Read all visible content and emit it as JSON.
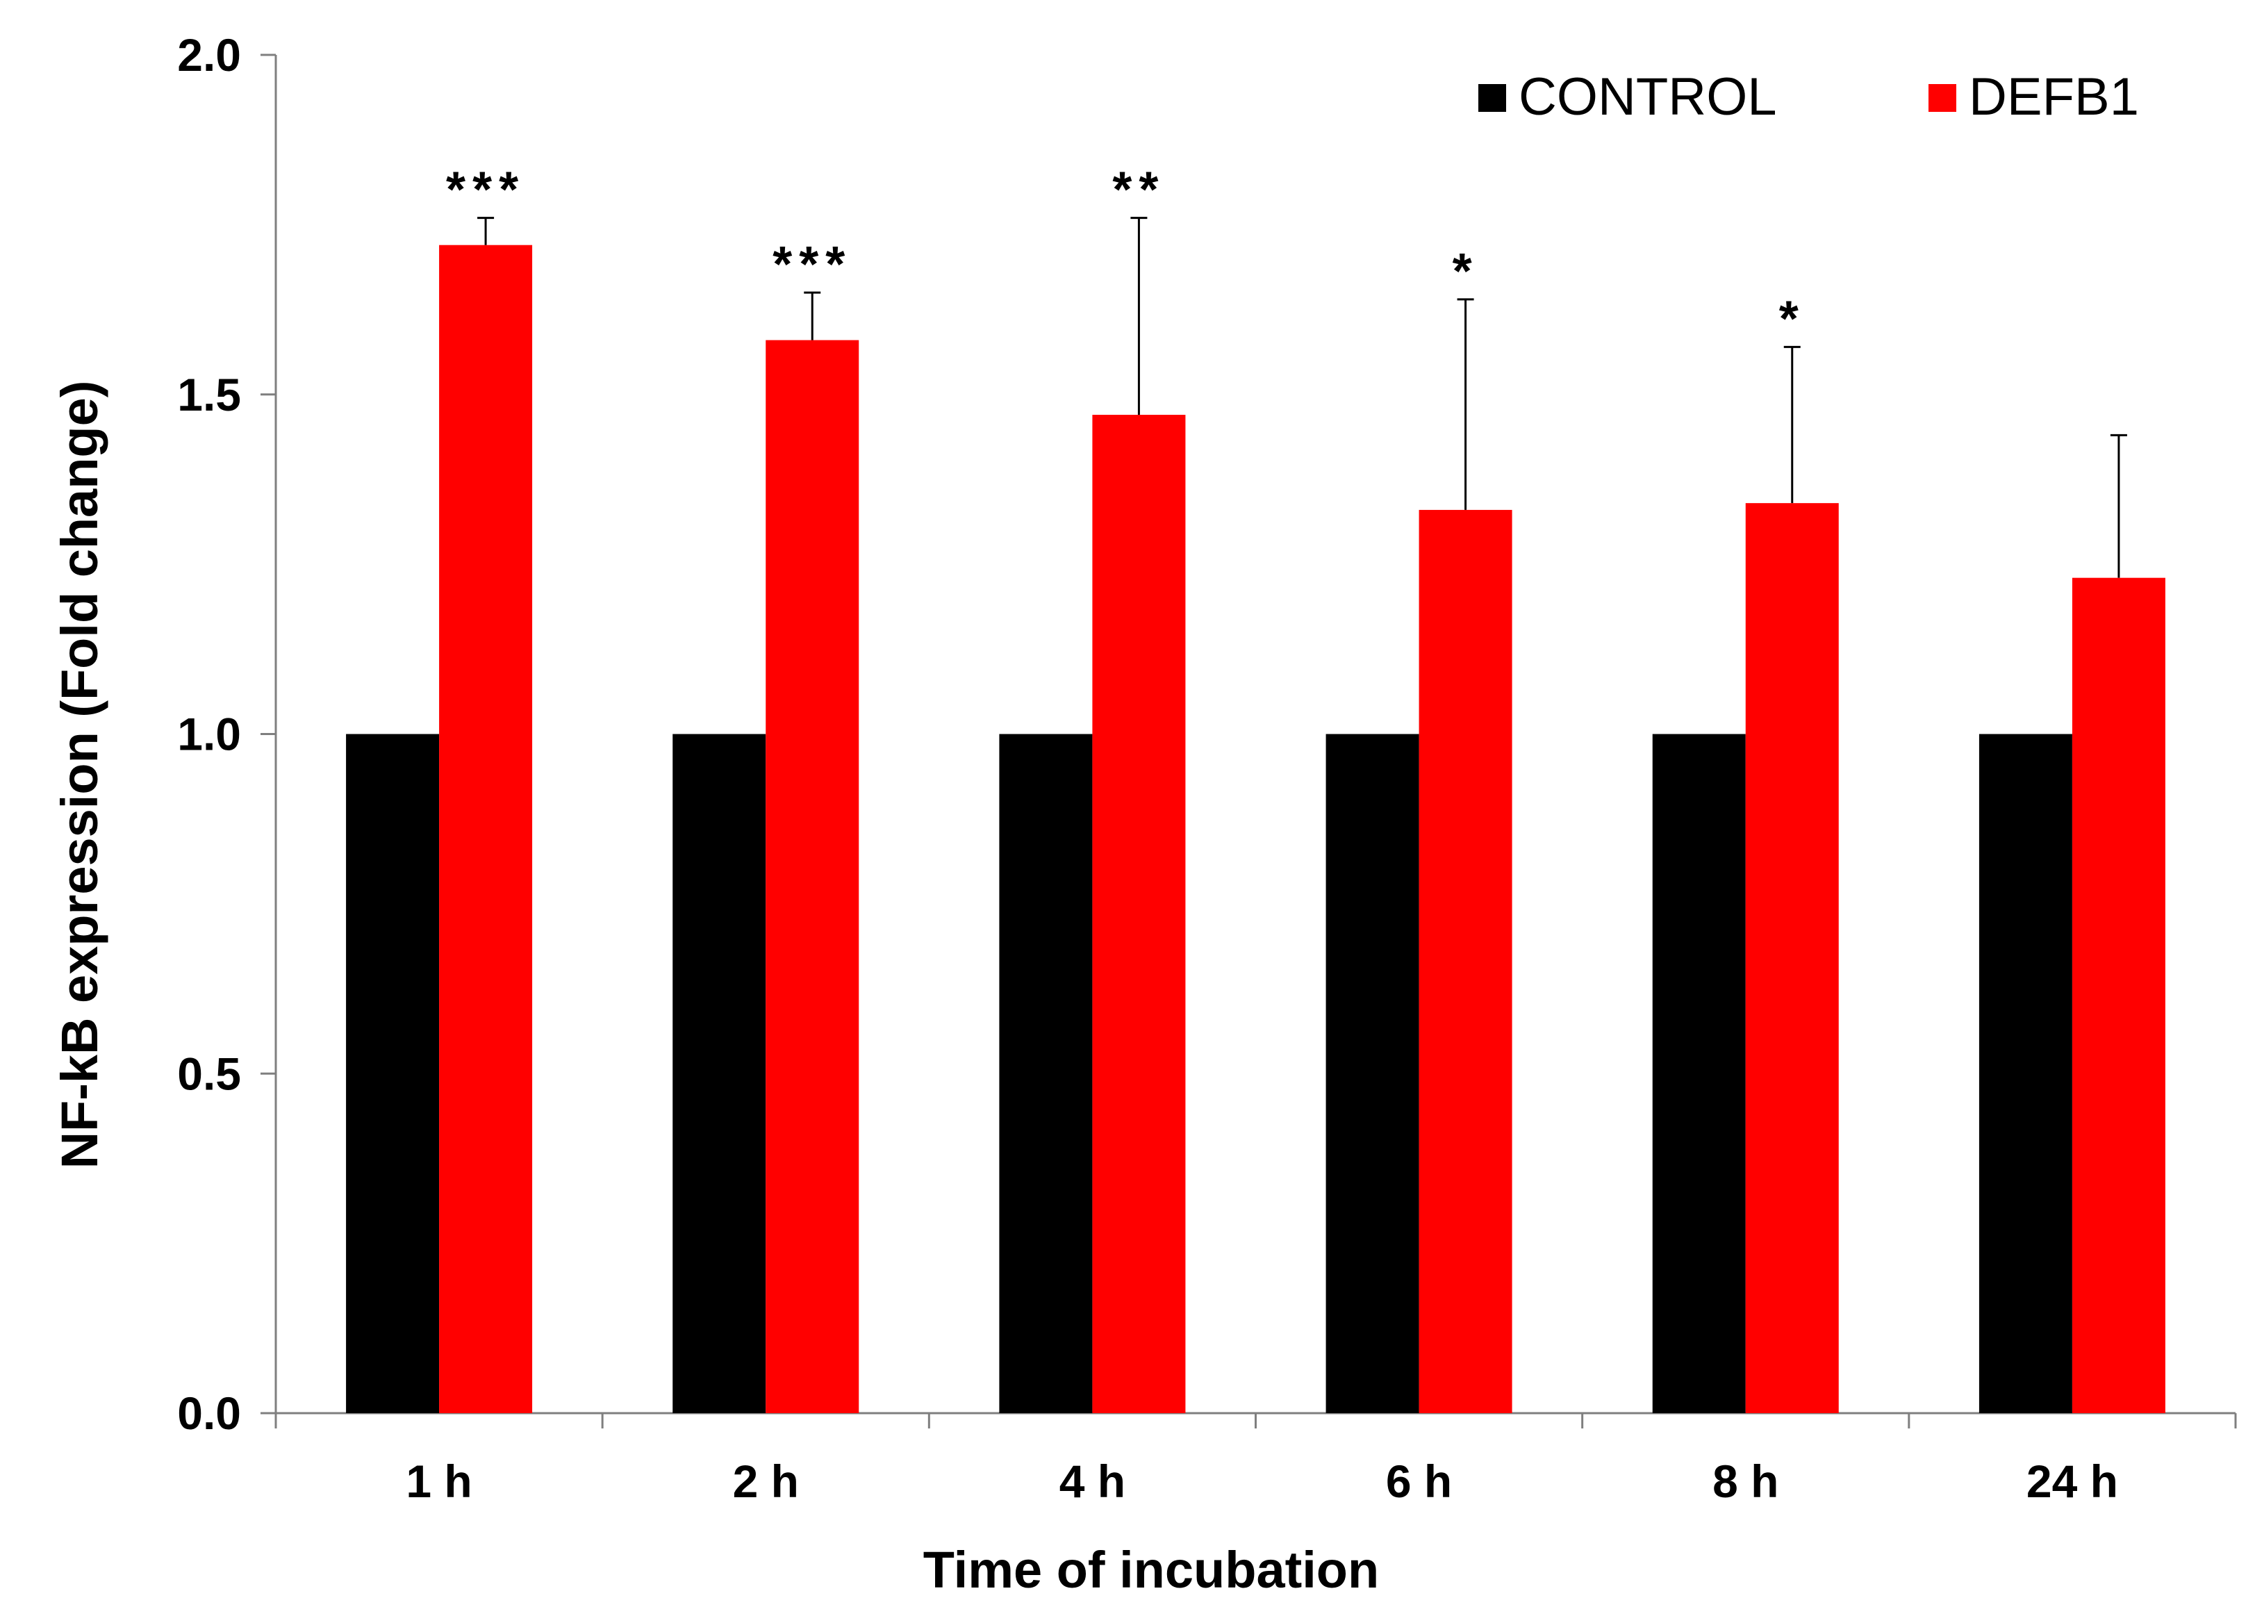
{
  "chart_data": {
    "type": "bar",
    "title": "",
    "xlabel": "Time of incubation",
    "ylabel": "NF-kB expression (Fold change)",
    "categories": [
      "1 h",
      "2 h",
      "4 h",
      "6 h",
      "8 h",
      "24 h"
    ],
    "ylim": [
      0,
      2.0
    ],
    "yticks": [
      "0.0",
      "0.5",
      "1.0",
      "1.5",
      "2.0"
    ],
    "ytick_values": [
      0,
      0.5,
      1.0,
      1.5,
      2.0
    ],
    "grid": false,
    "legend_position": "top-right",
    "series": [
      {
        "name": "CONTROL",
        "color": "#000000",
        "values": [
          1.0,
          1.0,
          1.0,
          1.0,
          1.0,
          1.0
        ]
      },
      {
        "name": "DEFB1",
        "color": "#ff0000",
        "values": [
          1.72,
          1.58,
          1.47,
          1.33,
          1.34,
          1.23
        ],
        "error_upper": [
          1.76,
          1.65,
          1.76,
          1.64,
          1.57,
          1.44
        ],
        "significance": [
          "***",
          "***",
          "**",
          "*",
          "*",
          ""
        ]
      }
    ]
  }
}
